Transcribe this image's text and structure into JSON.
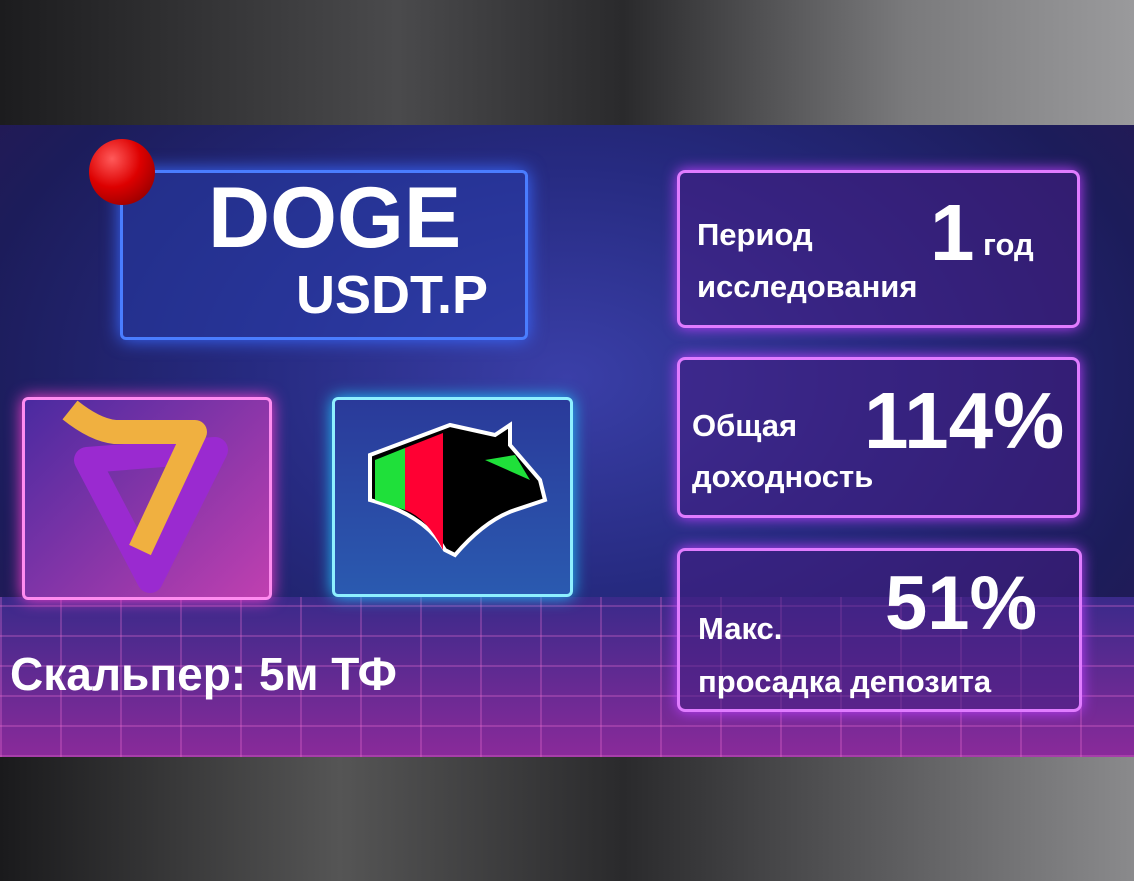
{
  "title": {
    "ticker": "DOGE",
    "pair": "USDT.P"
  },
  "strategy": "Скальпер: 5м ТФ",
  "stats": [
    {
      "label_line1": "Период",
      "label_line2": "исследования",
      "value": "1",
      "unit": "год"
    },
    {
      "label_line1": "Общая",
      "label_line2": "доходность",
      "value": "114%"
    },
    {
      "label_line1": "Макс.",
      "label_line2": "просадка депозита",
      "value": "51%"
    }
  ],
  "colors": {
    "green": "#1fe03a",
    "red": "#ff0033",
    "gold": "#f0b040",
    "purple": "#9a2ad0"
  }
}
